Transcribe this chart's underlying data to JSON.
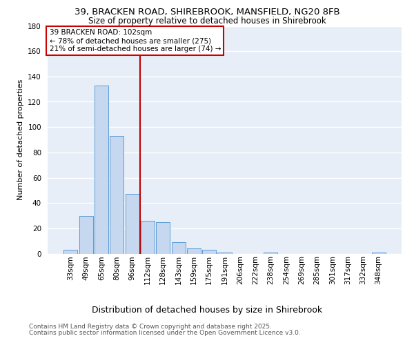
{
  "title1": "39, BRACKEN ROAD, SHIREBROOK, MANSFIELD, NG20 8FB",
  "title2": "Size of property relative to detached houses in Shirebrook",
  "xlabel": "Distribution of detached houses by size in Shirebrook",
  "ylabel": "Number of detached properties",
  "bar_color": "#c5d8f0",
  "bar_edge_color": "#5b9bd5",
  "bg_color": "#e8eef8",
  "grid_color": "#ffffff",
  "categories": [
    "33sqm",
    "49sqm",
    "65sqm",
    "80sqm",
    "96sqm",
    "112sqm",
    "128sqm",
    "143sqm",
    "159sqm",
    "175sqm",
    "191sqm",
    "206sqm",
    "222sqm",
    "238sqm",
    "254sqm",
    "269sqm",
    "285sqm",
    "301sqm",
    "317sqm",
    "332sqm",
    "348sqm"
  ],
  "values": [
    3,
    30,
    133,
    93,
    47,
    26,
    25,
    9,
    4,
    3,
    1,
    0,
    0,
    1,
    0,
    0,
    0,
    0,
    0,
    0,
    1
  ],
  "vline_x": 4.5,
  "annotation_text": "39 BRACKEN ROAD: 102sqm\n← 78% of detached houses are smaller (275)\n21% of semi-detached houses are larger (74) →",
  "vline_color": "#bb0000",
  "ann_fc": "#ffffff",
  "ann_ec": "#cc0000",
  "footer1": "Contains HM Land Registry data © Crown copyright and database right 2025.",
  "footer2": "Contains public sector information licensed under the Open Government Licence v3.0.",
  "ylim": [
    0,
    180
  ],
  "yticks": [
    0,
    20,
    40,
    60,
    80,
    100,
    120,
    140,
    160,
    180
  ],
  "title1_fontsize": 9.5,
  "title2_fontsize": 8.5,
  "ylabel_fontsize": 8,
  "xlabel_fontsize": 9,
  "tick_fontsize": 7.5,
  "footer_fontsize": 6.5
}
